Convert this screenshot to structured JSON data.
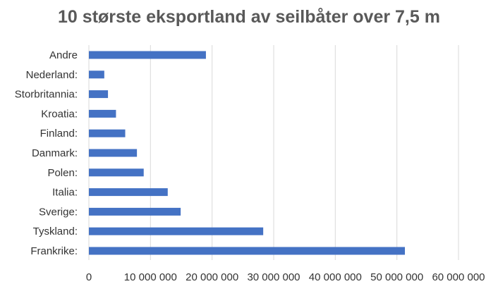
{
  "chart_data": {
    "type": "bar",
    "orientation": "horizontal",
    "title": "10 største eksportland av seilbåter over 7,5 m",
    "xlabel": "",
    "ylabel": "",
    "categories": [
      "Andre",
      "Nederland:",
      "Storbritannia:",
      "Kroatia:",
      "Finland:",
      "Danmark:",
      "Polen:",
      "Italia:",
      "Sverige:",
      "Tyskland:",
      "Frankrike:"
    ],
    "values": [
      19000000,
      2500000,
      3100000,
      4400000,
      5900000,
      7800000,
      8900000,
      12800000,
      14900000,
      28300000,
      51300000
    ],
    "xlim": [
      0,
      60000000
    ],
    "xticks": [
      0,
      10000000,
      20000000,
      30000000,
      40000000,
      50000000,
      60000000
    ],
    "xtick_labels": [
      "0",
      "10 000 000",
      "20 000 000",
      "30 000 000",
      "40 000 000",
      "50 000 000",
      "60 000 000"
    ],
    "grid": true,
    "legend": "none",
    "bar_color": "#4472C4",
    "grid_color": "#D9D9D9"
  }
}
